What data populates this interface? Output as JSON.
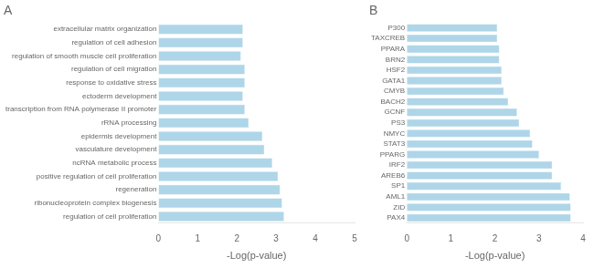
{
  "chart_data": [
    {
      "type": "bar",
      "orientation": "horizontal",
      "title": "A",
      "categories": [
        "extracellular matrix organization",
        "regulation of cell adhesion",
        "regulation of smooth muscle cell proliferation",
        "regulation of cell migration",
        "response to oxidative stress",
        "ectoderm development",
        "transcription from RNA polymerase II promoter",
        "rRNA processing",
        "epidermis development",
        "vasculature development",
        "ncRNA metabolic process",
        "positive regulation of cell proliferation",
        "regeneration",
        "ribonucleoprotein complex biogenesis",
        "regulation of cell proliferation"
      ],
      "values": [
        2.15,
        2.15,
        2.1,
        2.2,
        2.2,
        2.15,
        2.2,
        2.3,
        2.65,
        2.7,
        2.9,
        3.05,
        3.1,
        3.15,
        3.2
      ],
      "color": "#aed6e8",
      "xlabel": "-Log(p-value)",
      "xlim": [
        0,
        5
      ],
      "xticks": [
        0,
        1,
        2,
        3,
        4,
        5
      ],
      "grid": false
    },
    {
      "type": "bar",
      "orientation": "horizontal",
      "title": "B",
      "categories": [
        "P300",
        "TAXCREB",
        "PPARA",
        "BRN2",
        "HSF2",
        "GATA1",
        "CMYB",
        "BACH2",
        "GCNF",
        "PS3",
        "NMYC",
        "STAT3",
        "PPARG",
        "IRF2",
        "AREB6",
        "SP1",
        "AML1",
        "ZID",
        "PAX4"
      ],
      "values": [
        2.05,
        2.05,
        2.1,
        2.1,
        2.15,
        2.15,
        2.2,
        2.3,
        2.5,
        2.55,
        2.8,
        2.85,
        3.0,
        3.3,
        3.3,
        3.5,
        3.7,
        3.72,
        3.72
      ],
      "color": "#aed6e8",
      "xlabel": "-Log(p-value)",
      "xlim": [
        0,
        4
      ],
      "xticks": [
        0,
        1,
        2,
        3,
        4
      ],
      "grid": false
    }
  ]
}
